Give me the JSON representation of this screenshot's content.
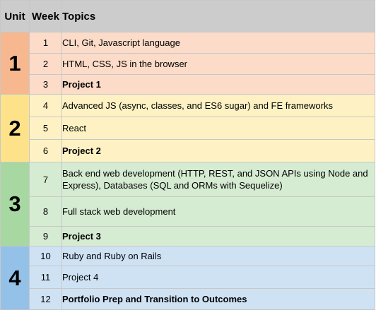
{
  "header": {
    "unit": "Unit",
    "week": "Week",
    "topics": "Topics"
  },
  "colors": {
    "header_bg": "#cccccc",
    "unit1": "#f8b88f",
    "unit1_light": "#fcdcc8",
    "unit2": "#fde28a",
    "unit2_light": "#fef2c4",
    "unit3": "#a7d8a2",
    "unit3_light": "#d6ecd2",
    "unit4": "#93c1e8",
    "unit4_light": "#cee2f4"
  },
  "units": [
    {
      "number": "1",
      "weeks": [
        {
          "week": "1",
          "topic": "CLI, Git, Javascript language",
          "bold": false
        },
        {
          "week": "2",
          "topic": "HTML, CSS, JS in the browser",
          "bold": false
        },
        {
          "week": "3",
          "topic": "Project 1",
          "bold": true
        }
      ]
    },
    {
      "number": "2",
      "weeks": [
        {
          "week": "4",
          "topic": "Advanced JS (async, classes, and ES6 sugar) and FE frameworks",
          "bold": false
        },
        {
          "week": "5",
          "topic": "React",
          "bold": false
        },
        {
          "week": "6",
          "topic": "Project 2",
          "bold": true
        }
      ]
    },
    {
      "number": "3",
      "weeks": [
        {
          "week": "7",
          "topic": "Back end web development (HTTP, REST, and JSON APIs using Node and Express), Databases (SQL and ORMs with Sequelize)",
          "bold": false
        },
        {
          "week": "8",
          "topic": "Full stack web development",
          "bold": false
        },
        {
          "week": "9",
          "topic": "Project 3",
          "bold": true
        }
      ]
    },
    {
      "number": "4",
      "weeks": [
        {
          "week": "10",
          "topic": "Ruby and Ruby on Rails",
          "bold": false
        },
        {
          "week": "11",
          "topic": "Project 4",
          "bold": false
        },
        {
          "week": "12",
          "topic": "Portfolio Prep and Transition to Outcomes",
          "bold": true
        }
      ]
    }
  ]
}
